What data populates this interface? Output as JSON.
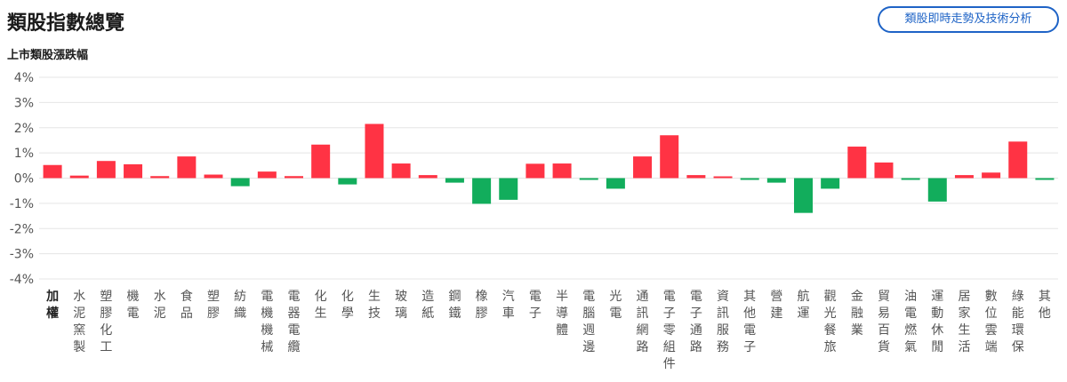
{
  "header": {
    "title": "類股指數總覽",
    "link_button": "類股即時走勢及技術分析"
  },
  "colors": {
    "up": "#ff3344",
    "down": "#12ad5c",
    "accent": "#1e63c6",
    "grid": "#e5e5e5"
  },
  "chart_data": {
    "type": "bar",
    "title": "上市類股漲跌幅",
    "xlabel": "",
    "ylabel": "",
    "ylim": [
      -4,
      4
    ],
    "yticks": [
      4,
      3,
      2,
      1,
      0,
      -1,
      -2,
      -3,
      -4
    ],
    "ytick_labels": [
      "4%",
      "3%",
      "2%",
      "1%",
      "0%",
      "-1%",
      "-2%",
      "-3%",
      "-4%"
    ],
    "grid": true,
    "categories": [
      "加權",
      "水泥窯製",
      "塑膠化工",
      "機電",
      "水泥",
      "食品",
      "塑膠",
      "紡織",
      "電機機械",
      "電器電纜",
      "化生",
      "化學",
      "生技",
      "玻璃",
      "造紙",
      "鋼鐵",
      "橡膠",
      "汽車",
      "電子",
      "半導體",
      "電腦週邊",
      "光電",
      "通訊網路",
      "電子零組件",
      "電子通路",
      "資訊服務",
      "其他電子",
      "營建",
      "航運",
      "觀光餐旅",
      "金融業",
      "貿易百貨",
      "油電燃氣",
      "運動休閒",
      "居家生活",
      "數位雲端",
      "綠能環保",
      "其他"
    ],
    "values": [
      0.52,
      0.1,
      0.68,
      0.55,
      0.08,
      0.86,
      0.14,
      -0.32,
      0.26,
      0.08,
      1.33,
      -0.25,
      2.15,
      0.58,
      0.12,
      -0.18,
      -1.02,
      -0.86,
      0.57,
      0.58,
      -0.07,
      -0.42,
      0.86,
      1.7,
      0.12,
      0.07,
      -0.07,
      -0.18,
      -1.38,
      -0.42,
      1.25,
      0.62,
      -0.07,
      -0.93,
      0.12,
      0.22,
      1.45,
      -0.07
    ]
  }
}
